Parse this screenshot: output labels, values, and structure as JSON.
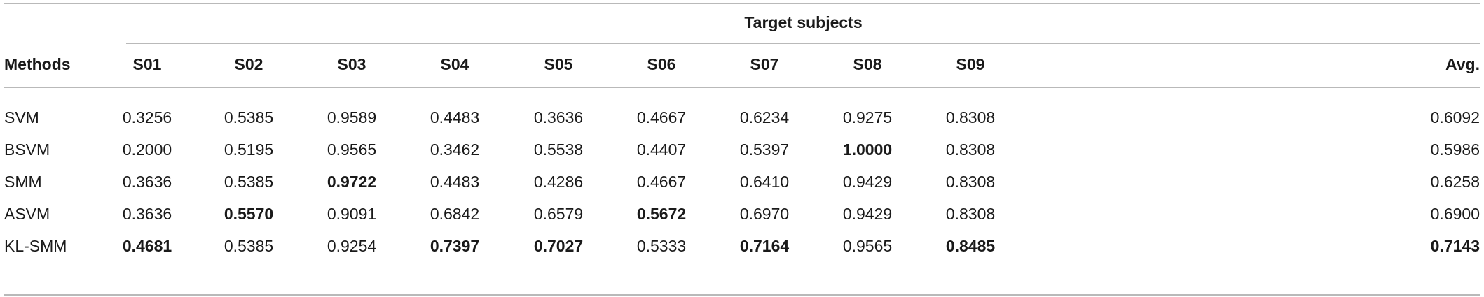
{
  "table": {
    "group_header": "Target subjects",
    "row_header": "Methods",
    "columns": [
      "S01",
      "S02",
      "S03",
      "S04",
      "S05",
      "S06",
      "S07",
      "S08",
      "S09",
      "Avg."
    ],
    "rows": [
      {
        "method": "SVM",
        "values": [
          "0.3256",
          "0.5385",
          "0.9589",
          "0.4483",
          "0.3636",
          "0.4667",
          "0.6234",
          "0.9275",
          "0.8308",
          "0.6092"
        ],
        "bold": []
      },
      {
        "method": "BSVM",
        "values": [
          "0.2000",
          "0.5195",
          "0.9565",
          "0.3462",
          "0.5538",
          "0.4407",
          "0.5397",
          "1.0000",
          "0.8308",
          "0.5986"
        ],
        "bold": [
          7
        ]
      },
      {
        "method": "SMM",
        "values": [
          "0.3636",
          "0.5385",
          "0.9722",
          "0.4483",
          "0.4286",
          "0.4667",
          "0.6410",
          "0.9429",
          "0.8308",
          "0.6258"
        ],
        "bold": [
          2
        ]
      },
      {
        "method": "ASVM",
        "values": [
          "0.3636",
          "0.5570",
          "0.9091",
          "0.6842",
          "0.6579",
          "0.5672",
          "0.6970",
          "0.9429",
          "0.8308",
          "0.6900"
        ],
        "bold": [
          1,
          5
        ]
      },
      {
        "method": "KL-SMM",
        "values": [
          "0.4681",
          "0.5385",
          "0.9254",
          "0.7397",
          "0.7027",
          "0.5333",
          "0.7164",
          "0.9565",
          "0.8485",
          "0.7143"
        ],
        "bold": [
          0,
          3,
          4,
          6,
          8,
          9
        ]
      }
    ]
  }
}
